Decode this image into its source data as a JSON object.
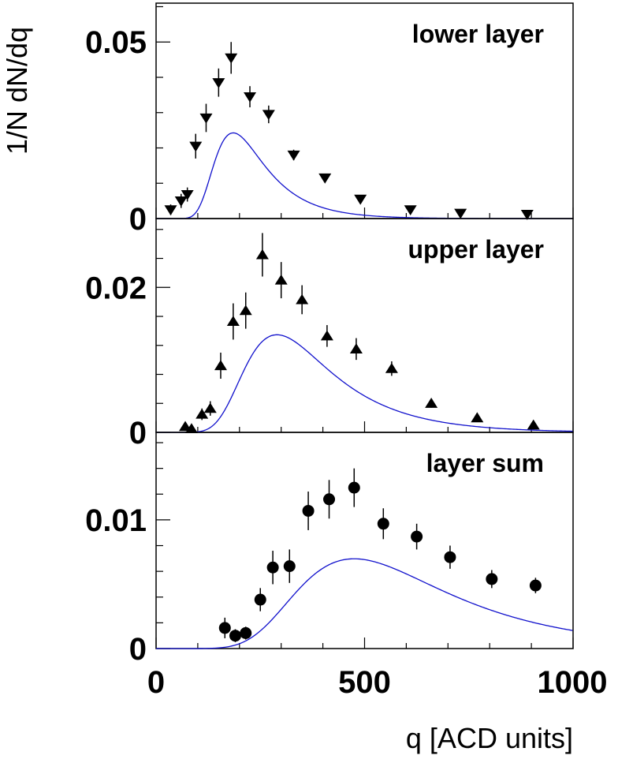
{
  "chart_data": {
    "type": "scatter",
    "x_label": "q [ACD units]",
    "y_label": "1/N dN/dq",
    "xlim": [
      0,
      1000
    ],
    "x_ticks": [
      {
        "value": 0,
        "label": "0"
      },
      {
        "value": 500,
        "label": "500"
      },
      {
        "value": 1000,
        "label": "1000"
      }
    ],
    "fit_color": "#1010cc",
    "panels": [
      {
        "title": "lower layer",
        "marker": "triangle-down",
        "ylim": [
          0,
          0.061
        ],
        "y_ticks": [
          {
            "value": 0,
            "label": "0"
          },
          {
            "value": 0.05,
            "label": "0.05"
          }
        ],
        "points": [
          {
            "x": 35,
            "y": 0.0025,
            "err": 0.0015
          },
          {
            "x": 60,
            "y": 0.005,
            "err": 0.002
          },
          {
            "x": 75,
            "y": 0.0068,
            "err": 0.002
          },
          {
            "x": 95,
            "y": 0.0205,
            "err": 0.0035
          },
          {
            "x": 120,
            "y": 0.0285,
            "err": 0.004
          },
          {
            "x": 150,
            "y": 0.0385,
            "err": 0.004
          },
          {
            "x": 180,
            "y": 0.0455,
            "err": 0.0045
          },
          {
            "x": 225,
            "y": 0.0345,
            "err": 0.003
          },
          {
            "x": 270,
            "y": 0.0295,
            "err": 0.0025
          },
          {
            "x": 330,
            "y": 0.018,
            "err": 0.0015
          },
          {
            "x": 405,
            "y": 0.0115,
            "err": 0.0012
          },
          {
            "x": 490,
            "y": 0.0055,
            "err": 0.0009
          },
          {
            "x": 610,
            "y": 0.0025,
            "err": 0.0006
          },
          {
            "x": 730,
            "y": 0.0015,
            "err": 0.0004
          },
          {
            "x": 890,
            "y": 0.0012,
            "err": 0.0004
          }
        ],
        "fit": {
          "mpv": 185,
          "width": 42,
          "amp": 0.04
        }
      },
      {
        "title": "upper layer",
        "marker": "triangle-up",
        "ylim": [
          0,
          0.0295
        ],
        "y_ticks": [
          {
            "value": 0,
            "label": "0"
          },
          {
            "value": 0.02,
            "label": "0.02"
          }
        ],
        "points": [
          {
            "x": 70,
            "y": 0.0008,
            "err": 0.0006
          },
          {
            "x": 85,
            "y": 0.0005,
            "err": 0.0005
          },
          {
            "x": 110,
            "y": 0.0025,
            "err": 0.0008
          },
          {
            "x": 130,
            "y": 0.0033,
            "err": 0.001
          },
          {
            "x": 155,
            "y": 0.0092,
            "err": 0.0018
          },
          {
            "x": 185,
            "y": 0.0153,
            "err": 0.0025
          },
          {
            "x": 215,
            "y": 0.0168,
            "err": 0.0025
          },
          {
            "x": 255,
            "y": 0.0245,
            "err": 0.003
          },
          {
            "x": 300,
            "y": 0.021,
            "err": 0.0025
          },
          {
            "x": 350,
            "y": 0.0183,
            "err": 0.002
          },
          {
            "x": 410,
            "y": 0.0133,
            "err": 0.0015
          },
          {
            "x": 480,
            "y": 0.0115,
            "err": 0.0015
          },
          {
            "x": 565,
            "y": 0.0088,
            "err": 0.001
          },
          {
            "x": 660,
            "y": 0.004,
            "err": 0.0006
          },
          {
            "x": 770,
            "y": 0.002,
            "err": 0.0004
          },
          {
            "x": 905,
            "y": 0.001,
            "err": 0.0003
          }
        ],
        "fit": {
          "mpv": 290,
          "width": 72,
          "amp": 0.0222
        }
      },
      {
        "title": "layer sum",
        "marker": "circle",
        "ylim": [
          0,
          0.0168
        ],
        "y_ticks": [
          {
            "value": 0,
            "label": "0"
          },
          {
            "value": 0.01,
            "label": "0.01"
          }
        ],
        "points": [
          {
            "x": 165,
            "y": 0.0016,
            "err": 0.0008
          },
          {
            "x": 190,
            "y": 0.001,
            "err": 0.0005
          },
          {
            "x": 215,
            "y": 0.0012,
            "err": 0.0005
          },
          {
            "x": 250,
            "y": 0.0038,
            "err": 0.0009
          },
          {
            "x": 280,
            "y": 0.0063,
            "err": 0.0013
          },
          {
            "x": 320,
            "y": 0.0064,
            "err": 0.0013
          },
          {
            "x": 365,
            "y": 0.0107,
            "err": 0.0015
          },
          {
            "x": 415,
            "y": 0.0116,
            "err": 0.0015
          },
          {
            "x": 475,
            "y": 0.0125,
            "err": 0.0015
          },
          {
            "x": 545,
            "y": 0.0097,
            "err": 0.0012
          },
          {
            "x": 625,
            "y": 0.0087,
            "err": 0.001
          },
          {
            "x": 705,
            "y": 0.0071,
            "err": 0.0009
          },
          {
            "x": 805,
            "y": 0.0054,
            "err": 0.0007
          },
          {
            "x": 910,
            "y": 0.0049,
            "err": 0.0006
          }
        ],
        "fit": {
          "mpv": 475,
          "width": 125,
          "amp": 0.0115
        }
      }
    ]
  }
}
